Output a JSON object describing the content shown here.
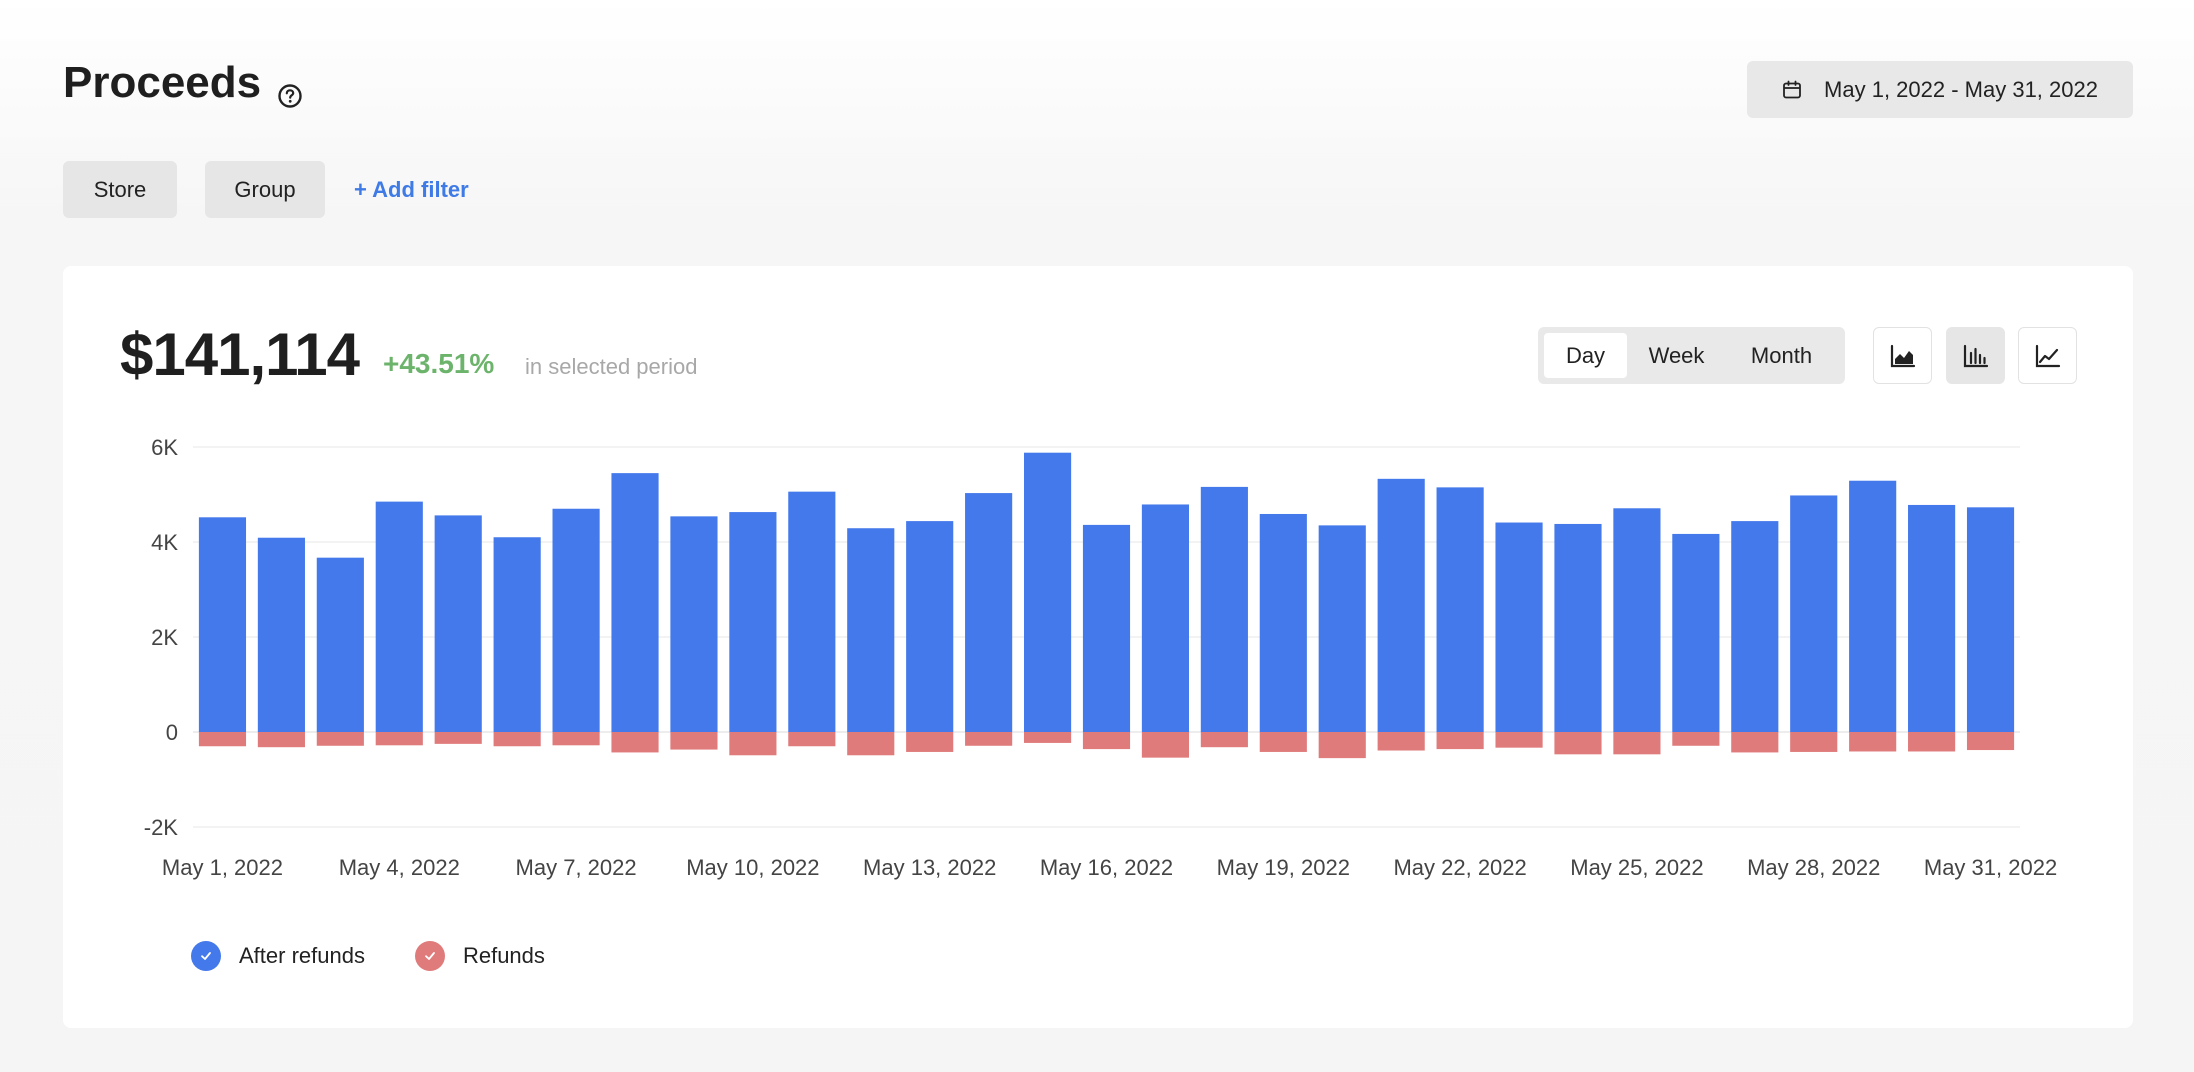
{
  "header": {
    "title": "Proceeds",
    "help_icon": "question-circle-icon",
    "date_range": "May 1, 2022 - May 31, 2022",
    "date_icon": "calendar-icon"
  },
  "filters": {
    "store_label": "Store",
    "group_label": "Group",
    "add_filter_label": "+ Add filter"
  },
  "summary": {
    "amount": "$141,114",
    "change": "+43.51%",
    "period_text": "in selected period"
  },
  "period_tabs": [
    {
      "label": "Day",
      "active": true
    },
    {
      "label": "Week",
      "active": false
    },
    {
      "label": "Month",
      "active": false
    }
  ],
  "chart_types": [
    {
      "icon": "area-chart-icon",
      "active": false
    },
    {
      "icon": "bar-chart-icon",
      "active": true
    },
    {
      "icon": "line-chart-icon",
      "active": false
    }
  ],
  "colors": {
    "after_refunds": "#4479eb",
    "refunds": "#e07b7b",
    "accent": "#3f7be6",
    "positive": "#6cb46c"
  },
  "chart_data": {
    "type": "bar",
    "stacked": true,
    "categories": [
      "May 1, 2022",
      "May 2, 2022",
      "May 3, 2022",
      "May 4, 2022",
      "May 5, 2022",
      "May 6, 2022",
      "May 7, 2022",
      "May 8, 2022",
      "May 9, 2022",
      "May 10, 2022",
      "May 11, 2022",
      "May 12, 2022",
      "May 13, 2022",
      "May 14, 2022",
      "May 15, 2022",
      "May 16, 2022",
      "May 17, 2022",
      "May 18, 2022",
      "May 19, 2022",
      "May 20, 2022",
      "May 21, 2022",
      "May 22, 2022",
      "May 23, 2022",
      "May 24, 2022",
      "May 25, 2022",
      "May 26, 2022",
      "May 27, 2022",
      "May 28, 2022",
      "May 29, 2022",
      "May 30, 2022",
      "May 31, 2022"
    ],
    "x_tick_labels": [
      "May 1, 2022",
      "May 4, 2022",
      "May 7, 2022",
      "May 10, 2022",
      "May 13, 2022",
      "May 16, 2022",
      "May 19, 2022",
      "May 22, 2022",
      "May 25, 2022",
      "May 28, 2022",
      "May 31, 2022"
    ],
    "y_ticks": [
      {
        "value": 6000,
        "label": "6K"
      },
      {
        "value": 4000,
        "label": "4K"
      },
      {
        "value": 2000,
        "label": "2K"
      },
      {
        "value": 0,
        "label": "0"
      },
      {
        "value": -2000,
        "label": "-2K"
      }
    ],
    "ylim": [
      -2000,
      6000
    ],
    "grid": true,
    "legend_position": "bottom-left",
    "series": [
      {
        "name": "After refunds",
        "values": [
          4520,
          4090,
          3670,
          4850,
          4560,
          4100,
          4700,
          5450,
          4540,
          4630,
          5060,
          4290,
          4440,
          5030,
          5880,
          4360,
          4790,
          5160,
          4590,
          4350,
          5330,
          5150,
          4410,
          4380,
          4710,
          4170,
          4440,
          4980,
          5290,
          4780,
          4730
        ]
      },
      {
        "name": "Refunds",
        "values": [
          -300,
          -320,
          -290,
          -280,
          -250,
          -300,
          -280,
          -430,
          -370,
          -490,
          -300,
          -490,
          -420,
          -290,
          -230,
          -360,
          -540,
          -320,
          -420,
          -550,
          -390,
          -360,
          -330,
          -470,
          -470,
          -290,
          -430,
          -420,
          -410,
          -410,
          -380
        ]
      }
    ]
  },
  "legend": [
    {
      "label": "After refunds",
      "icon": "check-icon"
    },
    {
      "label": "Refunds",
      "icon": "check-icon"
    }
  ]
}
